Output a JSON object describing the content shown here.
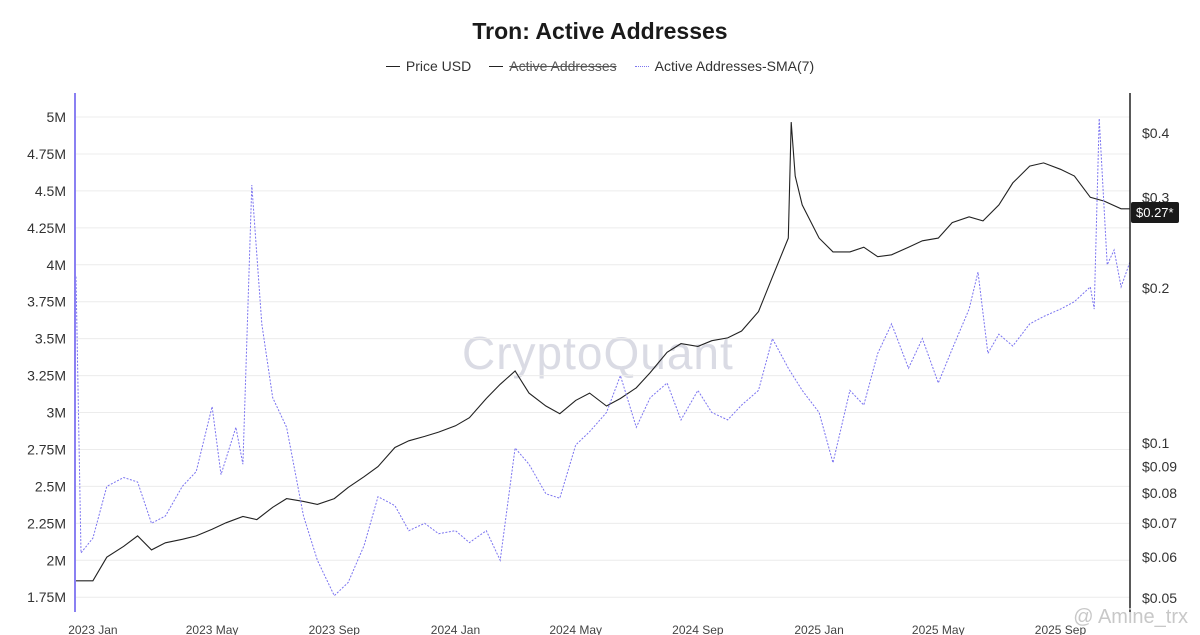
{
  "chart_data": {
    "type": "line",
    "title": "Tron: Active Addresses",
    "legend": [
      {
        "label": "Price USD",
        "style": "solid",
        "color": "#222222",
        "struck": false
      },
      {
        "label": "Active Addresses",
        "style": "solid",
        "color": "#222222",
        "struck": true
      },
      {
        "label": "Active Addresses-SMA(7)",
        "style": "dotted",
        "color": "#7b74f0",
        "struck": false
      }
    ],
    "left_axis": {
      "ticks": [
        1750000,
        2000000,
        2250000,
        2500000,
        2750000,
        3000000,
        3250000,
        3500000,
        3750000,
        4000000,
        4250000,
        4500000,
        4750000,
        5000000
      ],
      "tick_labels": [
        "1.75M",
        "2M",
        "2.25M",
        "2.5M",
        "2.75M",
        "3M",
        "3.25M",
        "3.5M",
        "3.75M",
        "4M",
        "4.25M",
        "4.5M",
        "4.75M",
        "5M"
      ],
      "range": [
        1650000,
        5000000
      ]
    },
    "right_axis": {
      "scale": "log",
      "ticks": [
        0.05,
        0.06,
        0.07,
        0.08,
        0.09,
        0.1,
        0.2,
        0.3,
        0.4
      ],
      "tick_labels": [
        "$0.05",
        "$0.06",
        "$0.07",
        "$0.08",
        "$0.09",
        "$0.1",
        "$0.2",
        "$0.3",
        "$0.4"
      ],
      "current_price_label": "$0.27*"
    },
    "x_axis": {
      "range": [
        "2022-12-15",
        "2025-11-10"
      ],
      "ticks": [
        "2023-01-01",
        "2023-05-01",
        "2023-09-01",
        "2024-01-01",
        "2024-05-01",
        "2024-09-01",
        "2025-01-01",
        "2025-05-01",
        "2025-09-01"
      ],
      "tick_labels": [
        "2023 Jan",
        "2023 May",
        "2023 Sep",
        "2024 Jan",
        "2024 May",
        "2024 Sep",
        "2025 Jan",
        "2025 May",
        "2025 Sep"
      ]
    },
    "series": [
      {
        "name": "Price USD",
        "axis": "right",
        "points": [
          [
            "2022-12-15",
            0.054
          ],
          [
            "2023-01-01",
            0.054
          ],
          [
            "2023-01-15",
            0.06
          ],
          [
            "2023-02-01",
            0.063
          ],
          [
            "2023-02-15",
            0.066
          ],
          [
            "2023-03-01",
            0.062
          ],
          [
            "2023-03-15",
            0.064
          ],
          [
            "2023-04-01",
            0.065
          ],
          [
            "2023-04-15",
            0.066
          ],
          [
            "2023-05-01",
            0.068
          ],
          [
            "2023-05-15",
            0.07
          ],
          [
            "2023-06-01",
            0.072
          ],
          [
            "2023-06-15",
            0.071
          ],
          [
            "2023-07-01",
            0.075
          ],
          [
            "2023-07-15",
            0.078
          ],
          [
            "2023-08-01",
            0.077
          ],
          [
            "2023-08-15",
            0.076
          ],
          [
            "2023-09-01",
            0.078
          ],
          [
            "2023-09-15",
            0.082
          ],
          [
            "2023-10-01",
            0.086
          ],
          [
            "2023-10-15",
            0.09
          ],
          [
            "2023-11-01",
            0.098
          ],
          [
            "2023-11-15",
            0.101
          ],
          [
            "2023-12-01",
            0.103
          ],
          [
            "2023-12-15",
            0.105
          ],
          [
            "2024-01-01",
            0.108
          ],
          [
            "2024-01-15",
            0.112
          ],
          [
            "2024-02-01",
            0.122
          ],
          [
            "2024-02-15",
            0.13
          ],
          [
            "2024-03-01",
            0.138
          ],
          [
            "2024-03-15",
            0.125
          ],
          [
            "2024-04-01",
            0.118
          ],
          [
            "2024-04-15",
            0.114
          ],
          [
            "2024-05-01",
            0.121
          ],
          [
            "2024-05-15",
            0.125
          ],
          [
            "2024-06-01",
            0.118
          ],
          [
            "2024-06-15",
            0.122
          ],
          [
            "2024-07-01",
            0.128
          ],
          [
            "2024-07-15",
            0.137
          ],
          [
            "2024-08-01",
            0.15
          ],
          [
            "2024-08-15",
            0.156
          ],
          [
            "2024-09-01",
            0.154
          ],
          [
            "2024-09-15",
            0.158
          ],
          [
            "2024-10-01",
            0.16
          ],
          [
            "2024-10-15",
            0.165
          ],
          [
            "2024-11-01",
            0.18
          ],
          [
            "2024-11-15",
            0.21
          ],
          [
            "2024-12-01",
            0.25
          ],
          [
            "2024-12-04",
            0.42
          ],
          [
            "2024-12-08",
            0.33
          ],
          [
            "2024-12-15",
            0.29
          ],
          [
            "2025-01-01",
            0.25
          ],
          [
            "2025-01-15",
            0.235
          ],
          [
            "2025-02-01",
            0.235
          ],
          [
            "2025-02-15",
            0.24
          ],
          [
            "2025-03-01",
            0.23
          ],
          [
            "2025-03-15",
            0.232
          ],
          [
            "2025-04-01",
            0.24
          ],
          [
            "2025-04-15",
            0.247
          ],
          [
            "2025-05-01",
            0.25
          ],
          [
            "2025-05-15",
            0.268
          ],
          [
            "2025-06-01",
            0.275
          ],
          [
            "2025-06-15",
            0.27
          ],
          [
            "2025-07-01",
            0.29
          ],
          [
            "2025-07-15",
            0.32
          ],
          [
            "2025-08-01",
            0.345
          ],
          [
            "2025-08-15",
            0.35
          ],
          [
            "2025-09-01",
            0.34
          ],
          [
            "2025-09-15",
            0.33
          ],
          [
            "2025-10-01",
            0.3
          ],
          [
            "2025-10-15",
            0.295
          ],
          [
            "2025-11-01",
            0.285
          ],
          [
            "2025-11-10",
            0.285
          ]
        ]
      },
      {
        "name": "Active Addresses-SMA(7)",
        "axis": "left",
        "points": [
          [
            "2022-12-15",
            3920000
          ],
          [
            "2022-12-20",
            2050000
          ],
          [
            "2023-01-01",
            2150000
          ],
          [
            "2023-01-15",
            2500000
          ],
          [
            "2023-02-01",
            2560000
          ],
          [
            "2023-02-15",
            2530000
          ],
          [
            "2023-03-01",
            2250000
          ],
          [
            "2023-03-15",
            2300000
          ],
          [
            "2023-04-01",
            2500000
          ],
          [
            "2023-04-15",
            2600000
          ],
          [
            "2023-05-01",
            3040000
          ],
          [
            "2023-05-10",
            2580000
          ],
          [
            "2023-05-25",
            2900000
          ],
          [
            "2023-06-01",
            2650000
          ],
          [
            "2023-06-10",
            4540000
          ],
          [
            "2023-06-20",
            3600000
          ],
          [
            "2023-07-01",
            3100000
          ],
          [
            "2023-07-15",
            2900000
          ],
          [
            "2023-08-01",
            2300000
          ],
          [
            "2023-08-15",
            2000000
          ],
          [
            "2023-09-01",
            1760000
          ],
          [
            "2023-09-15",
            1850000
          ],
          [
            "2023-10-01",
            2100000
          ],
          [
            "2023-10-15",
            2430000
          ],
          [
            "2023-11-01",
            2370000
          ],
          [
            "2023-11-15",
            2200000
          ],
          [
            "2023-12-01",
            2250000
          ],
          [
            "2023-12-15",
            2180000
          ],
          [
            "2024-01-01",
            2200000
          ],
          [
            "2024-01-15",
            2120000
          ],
          [
            "2024-02-01",
            2200000
          ],
          [
            "2024-02-15",
            2000000
          ],
          [
            "2024-03-01",
            2760000
          ],
          [
            "2024-03-15",
            2650000
          ],
          [
            "2024-04-01",
            2450000
          ],
          [
            "2024-04-15",
            2420000
          ],
          [
            "2024-05-01",
            2780000
          ],
          [
            "2024-05-15",
            2870000
          ],
          [
            "2024-06-01",
            3000000
          ],
          [
            "2024-06-15",
            3250000
          ],
          [
            "2024-07-01",
            2900000
          ],
          [
            "2024-07-15",
            3100000
          ],
          [
            "2024-08-01",
            3200000
          ],
          [
            "2024-08-15",
            2950000
          ],
          [
            "2024-09-01",
            3150000
          ],
          [
            "2024-09-15",
            3000000
          ],
          [
            "2024-10-01",
            2950000
          ],
          [
            "2024-10-15",
            3050000
          ],
          [
            "2024-11-01",
            3150000
          ],
          [
            "2024-11-15",
            3500000
          ],
          [
            "2024-12-01",
            3300000
          ],
          [
            "2024-12-15",
            3150000
          ],
          [
            "2025-01-01",
            3000000
          ],
          [
            "2025-01-15",
            2660000
          ],
          [
            "2025-02-01",
            3150000
          ],
          [
            "2025-02-15",
            3050000
          ],
          [
            "2025-03-01",
            3400000
          ],
          [
            "2025-03-15",
            3600000
          ],
          [
            "2025-04-01",
            3300000
          ],
          [
            "2025-04-15",
            3500000
          ],
          [
            "2025-05-01",
            3200000
          ],
          [
            "2025-05-15",
            3430000
          ],
          [
            "2025-06-01",
            3700000
          ],
          [
            "2025-06-10",
            3950000
          ],
          [
            "2025-06-20",
            3400000
          ],
          [
            "2025-07-01",
            3530000
          ],
          [
            "2025-07-15",
            3450000
          ],
          [
            "2025-08-01",
            3600000
          ],
          [
            "2025-08-15",
            3650000
          ],
          [
            "2025-09-01",
            3700000
          ],
          [
            "2025-09-15",
            3750000
          ],
          [
            "2025-10-01",
            3850000
          ],
          [
            "2025-10-05",
            3700000
          ],
          [
            "2025-10-10",
            4990000
          ],
          [
            "2025-10-18",
            4000000
          ],
          [
            "2025-10-25",
            4100000
          ],
          [
            "2025-11-01",
            3850000
          ],
          [
            "2025-11-10",
            4020000
          ]
        ]
      }
    ],
    "grid": true
  },
  "watermark": "CryptoQuant",
  "credit": "@ Amine_trx"
}
